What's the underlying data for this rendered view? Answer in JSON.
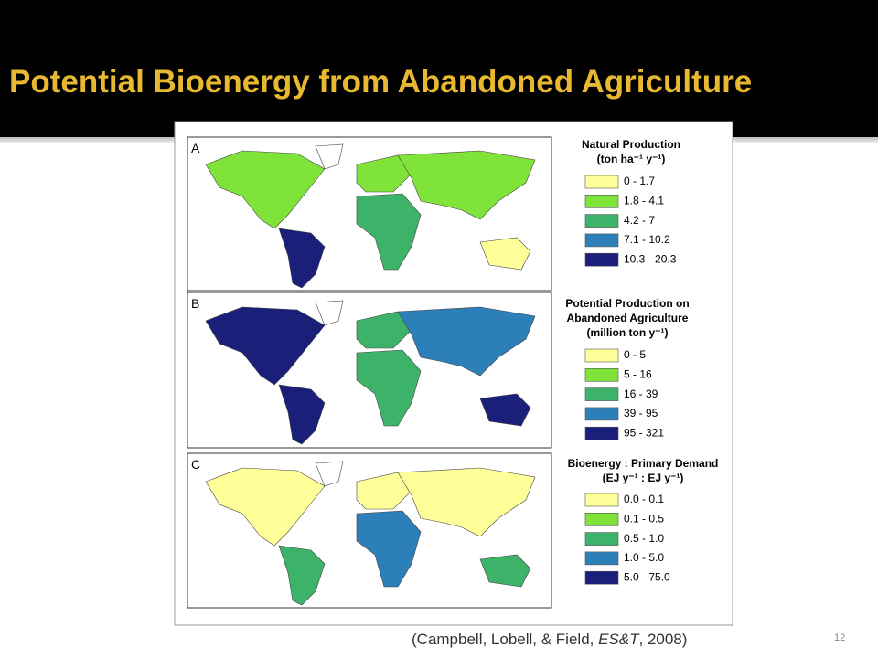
{
  "header": {
    "title": "Potential Bioenergy from Abandoned Agriculture"
  },
  "figure": {
    "panels": [
      {
        "label": "A",
        "legend_title": [
          "Natural Production",
          "(ton ha⁻¹ y⁻¹)"
        ],
        "legend_items": [
          "0 - 1.7",
          "1.8 - 4.1",
          "4.2 - 7",
          "7.1 - 10.2",
          "10.3 - 20.3"
        ]
      },
      {
        "label": "B",
        "legend_title": [
          "Potential Production on",
          "Abandoned Agriculture",
          "(million ton y⁻¹)"
        ],
        "legend_items": [
          "0 - 5",
          "5 - 16",
          "16 - 39",
          "39 - 95",
          "95 - 321"
        ]
      },
      {
        "label": "C",
        "legend_title": [
          "Bioenergy : Primary Demand",
          "(EJ y⁻¹ : EJ y⁻¹)"
        ],
        "legend_items": [
          "0.0 - 0.1",
          "0.1 - 0.5",
          "0.5 - 1.0",
          "1.0 - 5.0",
          "5.0 - 75.0"
        ]
      }
    ]
  },
  "footer": {
    "citation": [
      "(Campbell, Lobell, & Field, ",
      "ES&T",
      ", 2008)"
    ],
    "page_number": "12"
  }
}
